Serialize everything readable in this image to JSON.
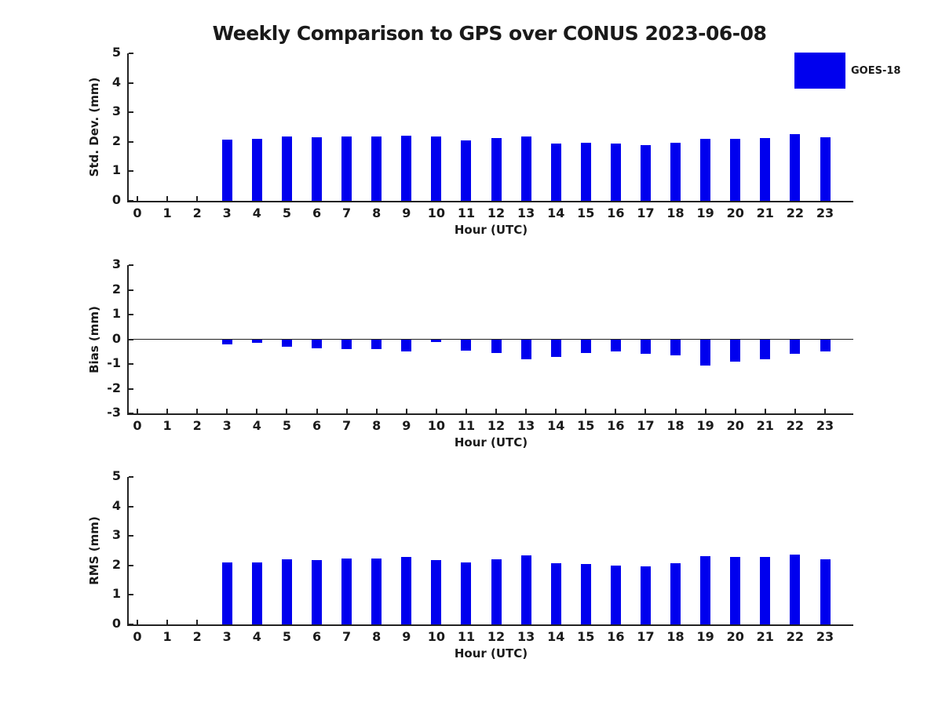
{
  "title": "Weekly Comparison to GPS over CONUS 2023-06-08",
  "legend": {
    "label": "GOES-18",
    "color": "#0000EE"
  },
  "accent_color": "#0000EE",
  "chart_data": [
    {
      "type": "bar",
      "title": "",
      "ylabel": "Std. Dev. (mm)",
      "xlabel": "Hour (UTC)",
      "ylim": [
        0,
        5
      ],
      "yticks": [
        0,
        1,
        2,
        3,
        4,
        5
      ],
      "grid": false,
      "legend_position": "top-right",
      "categories": [
        "0",
        "1",
        "2",
        "3",
        "4",
        "5",
        "6",
        "7",
        "8",
        "9",
        "10",
        "11",
        "12",
        "13",
        "14",
        "15",
        "16",
        "17",
        "18",
        "19",
        "20",
        "21",
        "22",
        "23"
      ],
      "series": [
        {
          "name": "GOES-18",
          "values": [
            0,
            0,
            0,
            2.08,
            2.1,
            2.18,
            2.16,
            2.18,
            2.18,
            2.21,
            2.18,
            2.05,
            2.14,
            2.18,
            1.95,
            1.97,
            1.93,
            1.88,
            1.97,
            2.1,
            2.11,
            2.14,
            2.26,
            2.16
          ]
        }
      ]
    },
    {
      "type": "bar",
      "title": "",
      "ylabel": "Bias (mm)",
      "xlabel": "Hour (UTC)",
      "ylim": [
        -3,
        3
      ],
      "yticks": [
        3,
        2,
        1,
        0,
        -1,
        -2,
        -3
      ],
      "grid": false,
      "legend_position": "none",
      "categories": [
        "0",
        "1",
        "2",
        "3",
        "4",
        "5",
        "6",
        "7",
        "8",
        "9",
        "10",
        "11",
        "12",
        "13",
        "14",
        "15",
        "16",
        "17",
        "18",
        "19",
        "20",
        "21",
        "22",
        "23"
      ],
      "series": [
        {
          "name": "GOES-18",
          "values": [
            0,
            0,
            0,
            -0.2,
            -0.15,
            -0.3,
            -0.35,
            -0.4,
            -0.4,
            -0.5,
            -0.1,
            -0.45,
            -0.55,
            -0.8,
            -0.7,
            -0.55,
            -0.5,
            -0.6,
            -0.65,
            -1.05,
            -0.9,
            -0.8,
            -0.6,
            -0.5
          ]
        }
      ]
    },
    {
      "type": "bar",
      "title": "",
      "ylabel": "RMS (mm)",
      "xlabel": "Hour (UTC)",
      "ylim": [
        0,
        5
      ],
      "yticks": [
        0,
        1,
        2,
        3,
        4,
        5
      ],
      "grid": false,
      "legend_position": "none",
      "categories": [
        "0",
        "1",
        "2",
        "3",
        "4",
        "5",
        "6",
        "7",
        "8",
        "9",
        "10",
        "11",
        "12",
        "13",
        "14",
        "15",
        "16",
        "17",
        "18",
        "19",
        "20",
        "21",
        "22",
        "23"
      ],
      "series": [
        {
          "name": "GOES-18",
          "values": [
            0,
            0,
            0,
            2.1,
            2.1,
            2.2,
            2.17,
            2.23,
            2.23,
            2.28,
            2.18,
            2.1,
            2.2,
            2.33,
            2.08,
            2.05,
            2.0,
            1.97,
            2.07,
            2.32,
            2.28,
            2.28,
            2.36,
            2.2
          ]
        }
      ]
    }
  ]
}
